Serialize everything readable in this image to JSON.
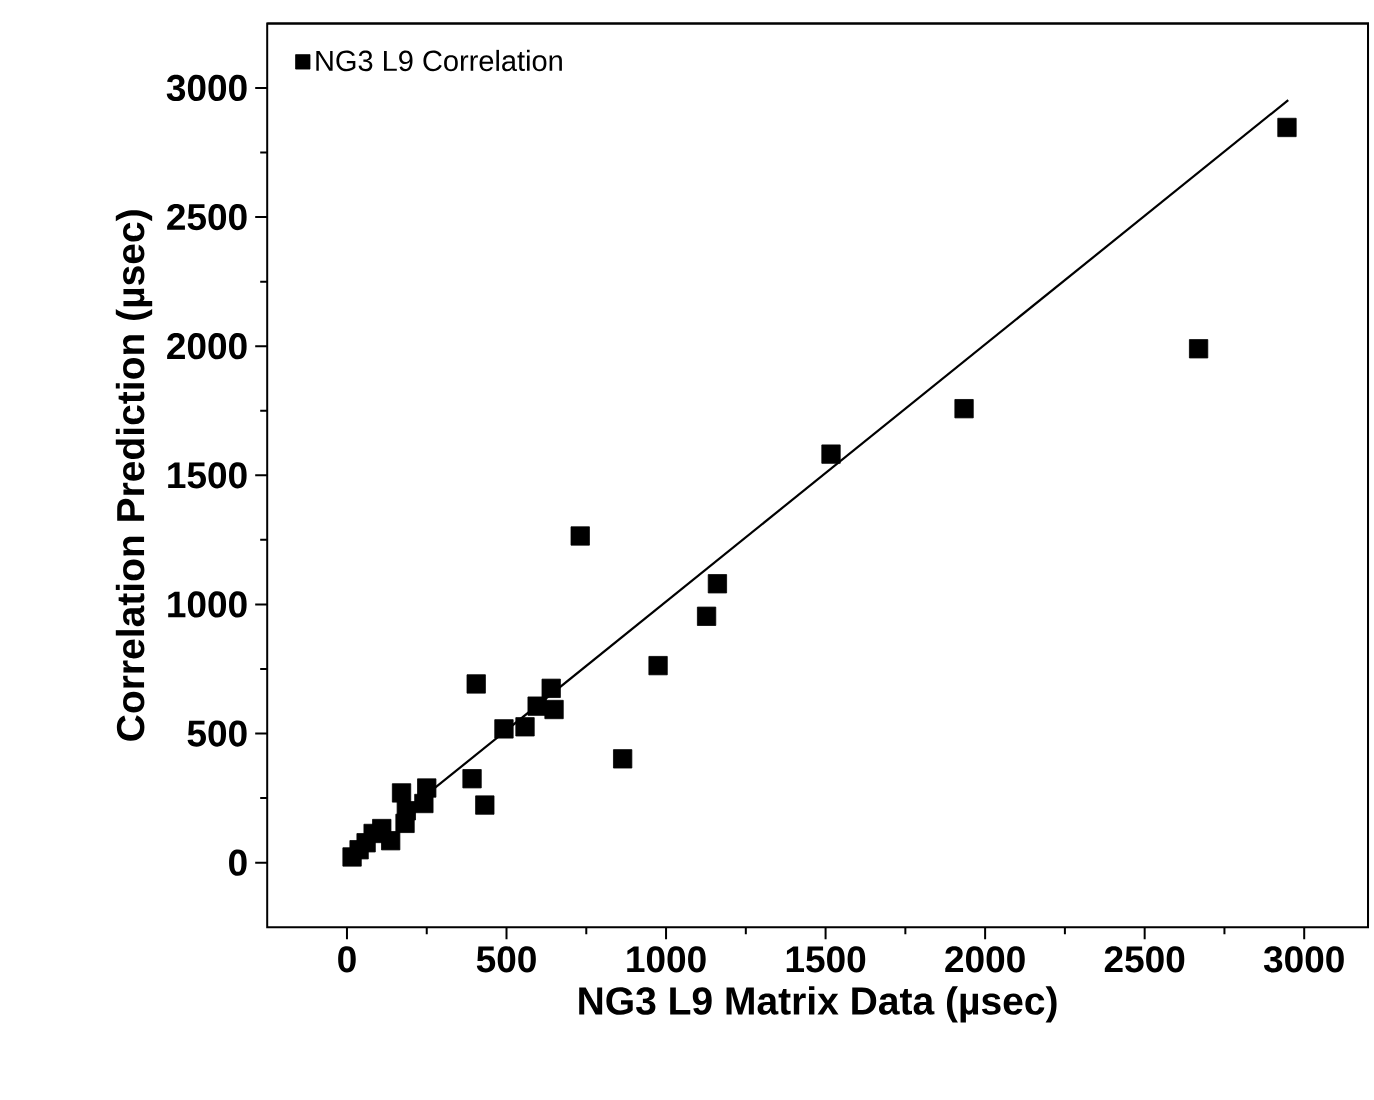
{
  "chart_data": {
    "type": "scatter",
    "xlabel": "NG3 L9 Matrix Data (µsec)",
    "ylabel": "Correlation Prediction (µsec)",
    "xlim": [
      -250,
      3200
    ],
    "ylim": [
      -250,
      3250
    ],
    "xticks": [
      0,
      500,
      1000,
      1500,
      2000,
      2500,
      3000
    ],
    "yticks": [
      0,
      500,
      1000,
      1500,
      2000,
      2500,
      3000
    ],
    "marker": "square",
    "legend": "top left",
    "series": [
      {
        "name": "NG3 L9 Correlation",
        "color": "#000000",
        "x": [
          16,
          38,
          60,
          82,
          109,
          137,
          182,
          186,
          171,
          241,
          250,
          392,
          432,
          405,
          492,
          558,
          596,
          649,
          640,
          864,
          975,
          1127,
          1161,
          731,
          1517,
          1934,
          2669,
          2946
        ],
        "values": [
          22,
          50,
          77,
          113,
          132,
          85,
          152,
          201,
          270,
          229,
          289,
          325,
          223,
          692,
          518,
          526,
          606,
          593,
          675,
          402,
          763,
          954,
          1080,
          1265,
          1582,
          1758,
          1990,
          2847
        ]
      },
      {
        "type": "line",
        "marker": "none",
        "color": "#000000",
        "x": [
          250,
          2950
        ],
        "values": [
          264,
          2953
        ]
      }
    ]
  }
}
